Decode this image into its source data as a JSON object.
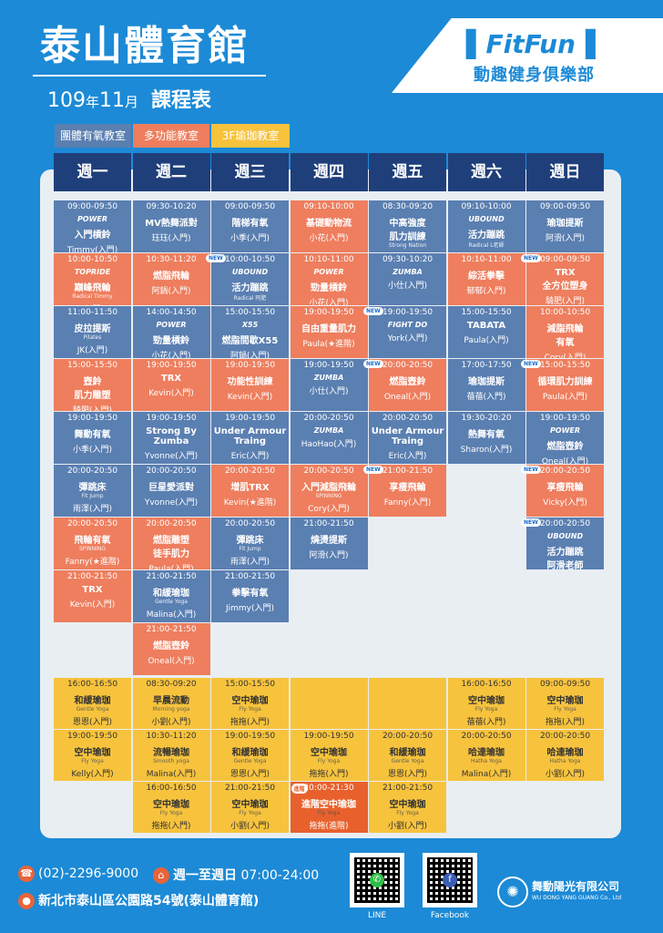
{
  "header": {
    "title": "泰山體育館",
    "year": "109",
    "year_unit": "年",
    "month": "11",
    "month_unit": "月",
    "subtitle": "課程表"
  },
  "brand": {
    "logo": "FitFun",
    "name": "動趣健身俱樂部"
  },
  "legend": [
    "團體有氧教室",
    "多功能教室",
    "3F瑜珈教室"
  ],
  "days": [
    "週一",
    "週二",
    "週三",
    "週四",
    "週五",
    "週六",
    "週日"
  ],
  "colors": {
    "blue": "#5a7fb1",
    "orange": "#ee7e5e",
    "yellow": "#f7c33d",
    "dark_orange": "#e8612c",
    "header": "#1f3f7a"
  },
  "new_label": "NEW",
  "advanced_label": "進階",
  "classes": [
    {
      "col": 0,
      "row": 0,
      "c": "b",
      "time": "09:00-09:50",
      "logo": "POWER",
      "name": "入門槓鈴",
      "instr": "Timmy(入門)"
    },
    {
      "col": 0,
      "row": 1,
      "c": "o",
      "time": "10:00-10:50",
      "logo": "TOPRIDE",
      "name": "巔峰飛輪",
      "en": "Radical Timmy",
      "instr": "(入門)"
    },
    {
      "col": 0,
      "row": 2,
      "c": "b",
      "time": "11:00-11:50",
      "name": "皮拉提斯",
      "en": "Pilates",
      "instr": "JK(入門)"
    },
    {
      "col": 0,
      "row": 3,
      "c": "o",
      "time": "15:00-15:50",
      "name": "壺鈴\n肌力雕塑",
      "instr": "騎肥(入門)"
    },
    {
      "col": 0,
      "row": 4,
      "c": "b",
      "time": "19:00-19:50",
      "name": "舞動有氧",
      "instr": "小季(入門)"
    },
    {
      "col": 0,
      "row": 5,
      "c": "b",
      "time": "20:00-20:50",
      "name": "彈跳床",
      "en": "Fit Jump",
      "instr": "雨澤(入門)"
    },
    {
      "col": 0,
      "row": 6,
      "c": "o",
      "time": "20:00-20:50",
      "name": "飛輪有氧",
      "en": "SPINNING",
      "instr": "Fanny(★進階)"
    },
    {
      "col": 0,
      "row": 7,
      "c": "o",
      "time": "21:00-21:50",
      "name": "TRX",
      "instr": "Kevin(入門)"
    },
    {
      "col": 1,
      "row": 0,
      "c": "b",
      "time": "09:30-10:20",
      "name": "MV熱舞派對",
      "instr": "珏珏(入門)"
    },
    {
      "col": 1,
      "row": 1,
      "c": "o",
      "time": "10:30-11:20",
      "name": "燃脂飛輪",
      "instr": "阿鍋(入門)"
    },
    {
      "col": 1,
      "row": 2,
      "c": "b",
      "time": "14:00-14:50",
      "logo": "POWER",
      "name": "勁量槓鈴",
      "instr": "小花(入門)"
    },
    {
      "col": 1,
      "row": 3,
      "c": "o",
      "time": "19:00-19:50",
      "name": "TRX",
      "instr": "Kevin(入門)"
    },
    {
      "col": 1,
      "row": 4,
      "c": "b",
      "time": "19:00-19:50",
      "name": "Strong By\nZumba",
      "instr": "Yvonne(入門)"
    },
    {
      "col": 1,
      "row": 5,
      "c": "b",
      "time": "20:00-20:50",
      "name": "巨星愛派對",
      "instr": "Yvonne(入門)"
    },
    {
      "col": 1,
      "row": 6,
      "c": "o",
      "time": "20:00-20:50",
      "name": "燃脂雕塑\n徒手肌力",
      "instr": "Paula(入門)"
    },
    {
      "col": 1,
      "row": 7,
      "c": "b",
      "time": "21:00-21:50",
      "name": "和緩瑜珈",
      "en": "Gentle Yoga",
      "instr": "Malina(入門)"
    },
    {
      "col": 1,
      "row": 8,
      "c": "o",
      "time": "21:00-21:50",
      "name": "燃脂壺鈴",
      "instr": "Oneal(入門)"
    },
    {
      "col": 2,
      "row": 0,
      "c": "b",
      "time": "09:00-09:50",
      "name": "階梯有氧",
      "instr": "小季(入門)"
    },
    {
      "col": 2,
      "row": 1,
      "c": "b",
      "time": "10:00-10:50",
      "new": true,
      "logo": "UBOUND",
      "name": "活力蹦跳",
      "en": "Radical 阿肥",
      "instr": "(入門)"
    },
    {
      "col": 2,
      "row": 2,
      "c": "b",
      "time": "15:00-15:50",
      "logo": "X55",
      "name": "燃脂間歇X55",
      "instr": "阿鍋(入門)"
    },
    {
      "col": 2,
      "row": 3,
      "c": "o",
      "time": "19:00-19:50",
      "name": "功能性訓練",
      "instr": "Kevin(入門)"
    },
    {
      "col": 2,
      "row": 4,
      "c": "b",
      "time": "19:00-19:50",
      "name": "Under Armour\nTraing",
      "instr": "Eric(入門)"
    },
    {
      "col": 2,
      "row": 5,
      "c": "o",
      "time": "20:00-20:50",
      "name": "增肌TRX",
      "instr": "Kevin(★進階)"
    },
    {
      "col": 2,
      "row": 6,
      "c": "b",
      "time": "20:00-20:50",
      "name": "彈跳床",
      "en": "Fit Jump",
      "instr": "雨澤(入門)"
    },
    {
      "col": 2,
      "row": 7,
      "c": "b",
      "time": "21:00-21:50",
      "name": "拳擊有氧",
      "instr": "Jimmy(入門)"
    },
    {
      "col": 3,
      "row": 0,
      "c": "o",
      "time": "09:10-10:00",
      "name": "基礎動物流",
      "instr": "小花(入門)"
    },
    {
      "col": 3,
      "row": 1,
      "c": "o",
      "time": "10:10-11:00",
      "logo": "POWER",
      "name": "勁量槓鈴",
      "instr": "小花(入門)"
    },
    {
      "col": 3,
      "row": 2,
      "c": "o",
      "time": "19:00-19:50",
      "name": "自由重量肌力",
      "instr": "Paula(★進階)"
    },
    {
      "col": 3,
      "row": 3,
      "c": "b",
      "time": "19:00-19:50",
      "logo": "ZUMBA",
      "instr": "小仕(入門)"
    },
    {
      "col": 3,
      "row": 4,
      "c": "b",
      "time": "20:00-20:50",
      "logo": "ZUMBA",
      "instr": "HaoHao(入門)"
    },
    {
      "col": 3,
      "row": 5,
      "c": "o",
      "time": "20:00-20:50",
      "name": "入門減脂飛輪",
      "en": "SPINNING",
      "instr": "Cory(入門)"
    },
    {
      "col": 3,
      "row": 6,
      "c": "b",
      "time": "21:00-21:50",
      "name": "燒燙提斯",
      "instr": "阿滑(入門)"
    },
    {
      "col": 4,
      "row": 0,
      "c": "b",
      "time": "08:30-09:20",
      "name": "中高強度\n肌力訓練",
      "en": "Strong Nation",
      "instr": "騎肥(入門)"
    },
    {
      "col": 4,
      "row": 1,
      "c": "b",
      "time": "09:30-10:20",
      "logo": "ZUMBA",
      "instr": "小仕(入門)"
    },
    {
      "col": 4,
      "row": 2,
      "c": "b",
      "time": "19:00-19:50",
      "new": true,
      "logo": "FIGHT DO",
      "instr": "York(入門)"
    },
    {
      "col": 4,
      "row": 3,
      "c": "o",
      "time": "20:00-20:50",
      "new": true,
      "name": "燃脂壺鈴",
      "instr": "Oneal(入門)"
    },
    {
      "col": 4,
      "row": 4,
      "c": "b",
      "time": "20:00-20:50",
      "name": "Under Armour\nTraing",
      "instr": "Eric(入門)"
    },
    {
      "col": 4,
      "row": 5,
      "c": "o",
      "time": "21:00-21:50",
      "new": true,
      "name": "享瘦飛輪",
      "instr": "Fanny(入門)"
    },
    {
      "col": 5,
      "row": 0,
      "c": "b",
      "time": "09:10-10:00",
      "logo": "UBOUND",
      "name": "活力蹦跳",
      "en": "Radical L老師",
      "instr": "(入門)"
    },
    {
      "col": 5,
      "row": 1,
      "c": "o",
      "time": "10:10-11:00",
      "name": "綜活拳擊",
      "instr": "郁郁(入門)"
    },
    {
      "col": 5,
      "row": 2,
      "c": "b",
      "time": "15:00-15:50",
      "name": "TABATA",
      "instr": "Paula(入門)"
    },
    {
      "col": 5,
      "row": 3,
      "c": "b",
      "time": "17:00-17:50",
      "name": "瑜珈提斯",
      "instr": "蓓蓓(入門)"
    },
    {
      "col": 5,
      "row": 4,
      "c": "b",
      "time": "19:30-20:20",
      "name": "熱舞有氧",
      "instr": "Sharon(入門)"
    },
    {
      "col": 6,
      "row": 0,
      "c": "b",
      "time": "09:00-09:50",
      "name": "瑜珈提斯",
      "instr": "阿滑(入門)"
    },
    {
      "col": 6,
      "row": 1,
      "c": "o",
      "time": "09:00-09:50",
      "new": true,
      "name": "TRX\n全方位塑身",
      "instr": "騎肥(入門)"
    },
    {
      "col": 6,
      "row": 2,
      "c": "o",
      "time": "10:00-10:50",
      "name": "減脂飛輪\n有氧",
      "instr": "Cory(入門)"
    },
    {
      "col": 6,
      "row": 3,
      "c": "o",
      "time": "15:00-15:50",
      "new": true,
      "name": "循環肌力訓練",
      "instr": "Paula(入門)"
    },
    {
      "col": 6,
      "row": 4,
      "c": "b",
      "time": "19:00-19:50",
      "logo": "POWER",
      "name": "燃脂壺鈴",
      "instr": "Oneal(入門)"
    },
    {
      "col": 6,
      "row": 5,
      "c": "o",
      "time": "20:00-20:50",
      "new": true,
      "name": "享瘦飛輪",
      "instr": "Vicky(入門)"
    },
    {
      "col": 6,
      "row": 6,
      "c": "b",
      "time": "20:00-20:50",
      "new": true,
      "logo": "UBOUND",
      "name": "活力蹦跳\n阿滑老師",
      "instr": "(入門)"
    }
  ],
  "yoga": [
    {
      "col": 0,
      "row": 0,
      "time": "16:00-16:50",
      "name": "和緩瑜珈",
      "en": "Gentle Yoga",
      "instr": "恩恩(入門)"
    },
    {
      "col": 0,
      "row": 1,
      "time": "19:00-19:50",
      "name": "空中瑜珈",
      "en": "Fly Yoga",
      "instr": "Kelly(入門)"
    },
    {
      "col": 1,
      "row": 0,
      "time": "08:30-09:20",
      "name": "早晨流動",
      "en": "Morning yoga",
      "instr": "小劉(入門)"
    },
    {
      "col": 1,
      "row": 1,
      "time": "10:30-11:20",
      "name": "流暢瑜珈",
      "en": "Smooth yoga",
      "instr": "Malina(入門)"
    },
    {
      "col": 1,
      "row": 2,
      "time": "16:00-16:50",
      "name": "空中瑜珈",
      "en": "Fly Yoga",
      "instr": "拖拖(入門)"
    },
    {
      "col": 2,
      "row": 0,
      "time": "15:00-15:50",
      "name": "空中瑜珈",
      "en": "Fly Yoga",
      "instr": "拖拖(入門)"
    },
    {
      "col": 2,
      "row": 1,
      "time": "19:00-19:50",
      "name": "和緩瑜珈",
      "en": "Gentle Yoga",
      "instr": "恩恩(入門)"
    },
    {
      "col": 2,
      "row": 2,
      "time": "21:00-21:50",
      "name": "空中瑜珈",
      "en": "Fly Yoga",
      "instr": "小劉(入門)"
    },
    {
      "col": 3,
      "row": 0,
      "time": "",
      "name": "",
      "en": "",
      "instr": ""
    },
    {
      "col": 3,
      "row": 1,
      "time": "19:00-19:50",
      "name": "空中瑜珈",
      "en": "Fly Yoga",
      "instr": "拖拖(入門)"
    },
    {
      "col": 3,
      "row": 2,
      "time": "20:00-21:30",
      "name": "進階空中瑜珈",
      "en": "Fly Yoga",
      "instr": "拖拖(進階)",
      "adv": true
    },
    {
      "col": 4,
      "row": 0,
      "time": "",
      "name": "",
      "en": "",
      "instr": ""
    },
    {
      "col": 4,
      "row": 1,
      "time": "20:00-20:50",
      "name": "和緩瑜珈",
      "en": "Gentle Yoga",
      "instr": "恩恩(入門)"
    },
    {
      "col": 4,
      "row": 2,
      "time": "21:00-21:50",
      "name": "空中瑜珈",
      "en": "Fly Yoga",
      "instr": "小劉(入門)"
    },
    {
      "col": 5,
      "row": 0,
      "time": "16:00-16:50",
      "name": "空中瑜珈",
      "en": "Fly Yoga",
      "instr": "蓓蓓(入門)"
    },
    {
      "col": 5,
      "row": 1,
      "time": "20:00-20:50",
      "name": "哈達瑜珈",
      "en": "Hatha Yoga",
      "instr": "Malina(入門)"
    },
    {
      "col": 6,
      "row": 0,
      "time": "09:00-09:50",
      "name": "空中瑜珈",
      "en": "Fly Yoga",
      "instr": "拖拖(入門)"
    },
    {
      "col": 6,
      "row": 1,
      "time": "20:00-20:50",
      "name": "哈達瑜珈",
      "en": "Hatha Yoga",
      "instr": "小劉(入門)"
    }
  ],
  "footer": {
    "phone": "(02)-2296-9000",
    "hours_days": "週一至週日",
    "hours_time": "07:00-24:00",
    "address": "新北市泰山區公園路54號(泰山體育館)",
    "qr_labels": [
      "LINE",
      "Facebook"
    ],
    "company_cn": "舞動陽光有限公司",
    "company_en": "WU DONG YANG GUANG Co., Ltd"
  }
}
